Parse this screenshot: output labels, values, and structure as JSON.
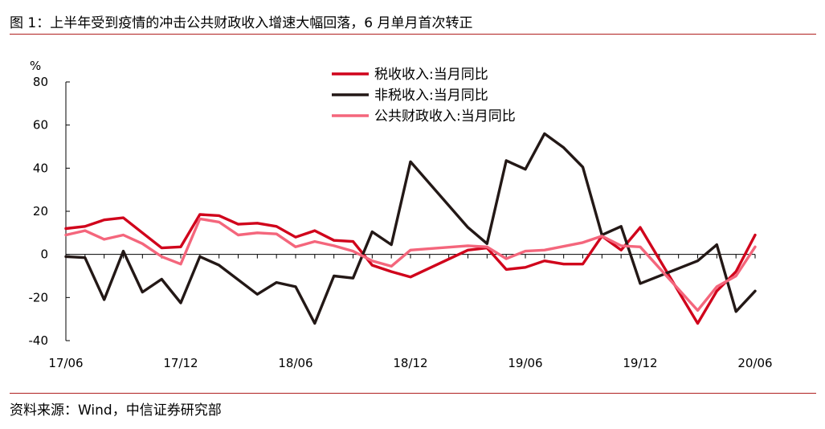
{
  "header": {
    "title": "图 1：上半年受到疫情的冲击公共财政收入增速大幅回落，6 月单月首次转正"
  },
  "footer": {
    "source": "资料来源：Wind，中信证券研究部"
  },
  "colors": {
    "rule": "#b0201f",
    "axis": "#000000"
  },
  "chart_data": {
    "type": "line",
    "title": "",
    "xlabel": "",
    "ylabel": "%",
    "ylim": [
      -40,
      80
    ],
    "yticks": [
      -40,
      -20,
      0,
      20,
      40,
      60,
      80
    ],
    "grid": false,
    "legend_position": "top-center",
    "x": [
      "17/06",
      "17/07",
      "17/08",
      "17/09",
      "17/10",
      "17/11",
      "17/12",
      "18/01",
      "18/02",
      "18/03",
      "18/04",
      "18/05",
      "18/06",
      "18/07",
      "18/08",
      "18/09",
      "18/10",
      "18/11",
      "18/12",
      "19/01",
      "19/02",
      "19/03",
      "19/04",
      "19/05",
      "19/06",
      "19/07",
      "19/08",
      "19/09",
      "19/10",
      "19/11",
      "19/12",
      "20/01",
      "20/02",
      "20/03",
      "20/04",
      "20/05",
      "20/06"
    ],
    "xtick_labels": [
      "17/06",
      "17/12",
      "18/06",
      "18/12",
      "19/06",
      "19/12",
      "20/06"
    ],
    "series": [
      {
        "name": "税收收入:当月同比",
        "color": "#d0021b",
        "values": [
          12,
          13,
          16,
          17,
          10,
          3,
          3.5,
          18.5,
          18,
          14,
          14.5,
          13,
          8,
          11,
          6.5,
          6,
          -5,
          -8,
          -10.5,
          null,
          null,
          2,
          3,
          -7,
          -6,
          -3,
          -4.5,
          -4.5,
          8.5,
          2,
          12.5,
          null,
          null,
          -32,
          -17,
          -8,
          9
        ]
      },
      {
        "name": "非税收入:当月同比",
        "color": "#231816",
        "values": [
          -1,
          -1.5,
          -21,
          1.5,
          -17.5,
          -11.5,
          -22.5,
          -1,
          -5,
          null,
          -18.5,
          -13,
          -15,
          -32,
          -10,
          -11,
          10.5,
          4.5,
          43,
          null,
          null,
          12.5,
          5,
          43.5,
          39.5,
          56,
          49.5,
          40.5,
          9,
          13,
          -13.5,
          null,
          null,
          -3,
          4.5,
          -26.5,
          -17
        ]
      },
      {
        "name": "公共财政收入:当月同比",
        "color": "#f4667c",
        "values": [
          9,
          11,
          7,
          9,
          5,
          -1,
          -4.5,
          16.5,
          15,
          9,
          10,
          9.5,
          3.5,
          6,
          4,
          1.5,
          -3,
          -5.5,
          2,
          null,
          null,
          4,
          3.5,
          -2,
          1.5,
          2,
          null,
          5.5,
          8.5,
          4,
          3.5,
          null,
          null,
          -26,
          -15,
          -10,
          3.5
        ]
      }
    ]
  }
}
